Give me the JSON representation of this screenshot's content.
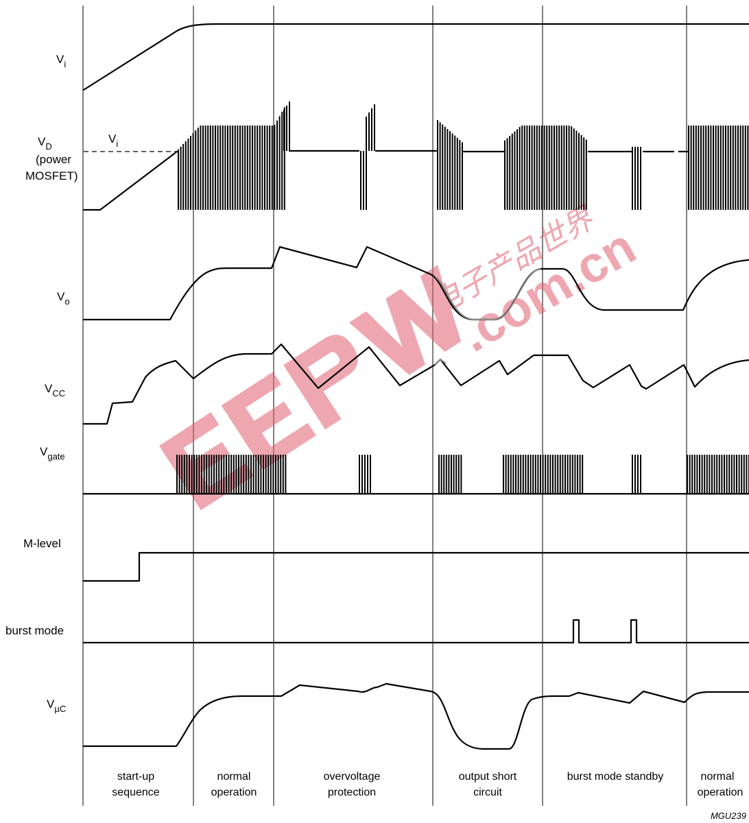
{
  "signals": {
    "vi": {
      "main": "V",
      "sub": "i"
    },
    "vd": {
      "main": "V",
      "sub": "D",
      "line2": "(power",
      "line3": "MOSFET)",
      "ref_main": "V",
      "ref_sub": "i"
    },
    "vo": {
      "main": "V",
      "sub": "o"
    },
    "vcc": {
      "main": "V",
      "sub": "CC"
    },
    "vgate": {
      "main": "V",
      "sub": "gate"
    },
    "mlevel": {
      "main": "M-level"
    },
    "burst": {
      "main": "burst mode"
    },
    "vuc": {
      "main": "V",
      "sub": "µC"
    }
  },
  "phases": [
    {
      "line1": "start-up",
      "line2": "sequence"
    },
    {
      "line1": "normal",
      "line2": "operation"
    },
    {
      "line1": "overvoltage",
      "line2": "protection"
    },
    {
      "line1": "output short",
      "line2": "circuit"
    },
    {
      "line1": "burst mode standby",
      "line2": ""
    },
    {
      "line1": "normal",
      "line2": "operation"
    }
  ],
  "figure_ref": "MGU239",
  "watermark": {
    "brand": "EEPW",
    "domain": ".com.cn",
    "cjk": "电子产品世界",
    "color": "#e06070"
  }
}
